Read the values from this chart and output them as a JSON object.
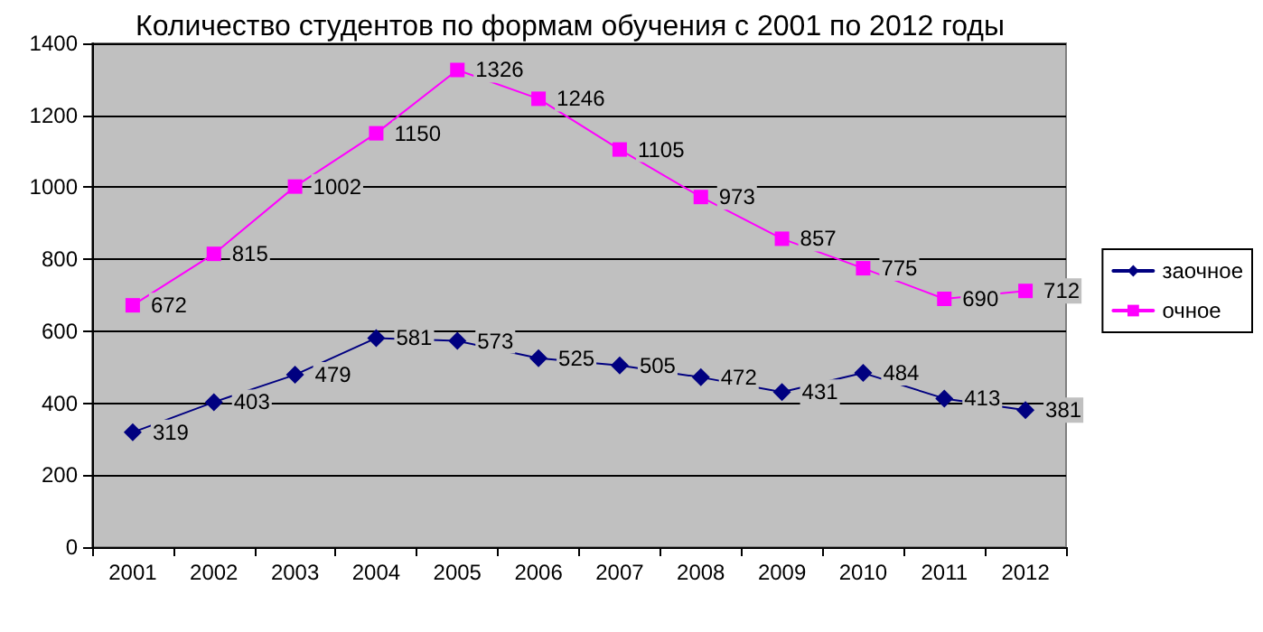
{
  "chart_data": {
    "type": "line",
    "title": "Количество студентов по формам обучения с 2001 по 2012 годы",
    "categories": [
      "2001",
      "2002",
      "2003",
      "2004",
      "2005",
      "2006",
      "2007",
      "2008",
      "2009",
      "2010",
      "2011",
      "2012"
    ],
    "series": [
      {
        "name": "заочное",
        "color": "#000080",
        "marker": "diamond",
        "values": [
          319,
          403,
          479,
          581,
          573,
          525,
          505,
          472,
          431,
          484,
          413,
          381
        ]
      },
      {
        "name": "очное",
        "color": "#ff00ff",
        "marker": "square",
        "values": [
          672,
          815,
          1002,
          1150,
          1326,
          1246,
          1105,
          973,
          857,
          775,
          690,
          712
        ]
      }
    ],
    "ylim": [
      0,
      1400
    ],
    "yticks": [
      0,
      200,
      400,
      600,
      800,
      1000,
      1200,
      1400
    ],
    "grid": "y",
    "legend": "right",
    "data_labels": true,
    "line_style": "solid"
  }
}
